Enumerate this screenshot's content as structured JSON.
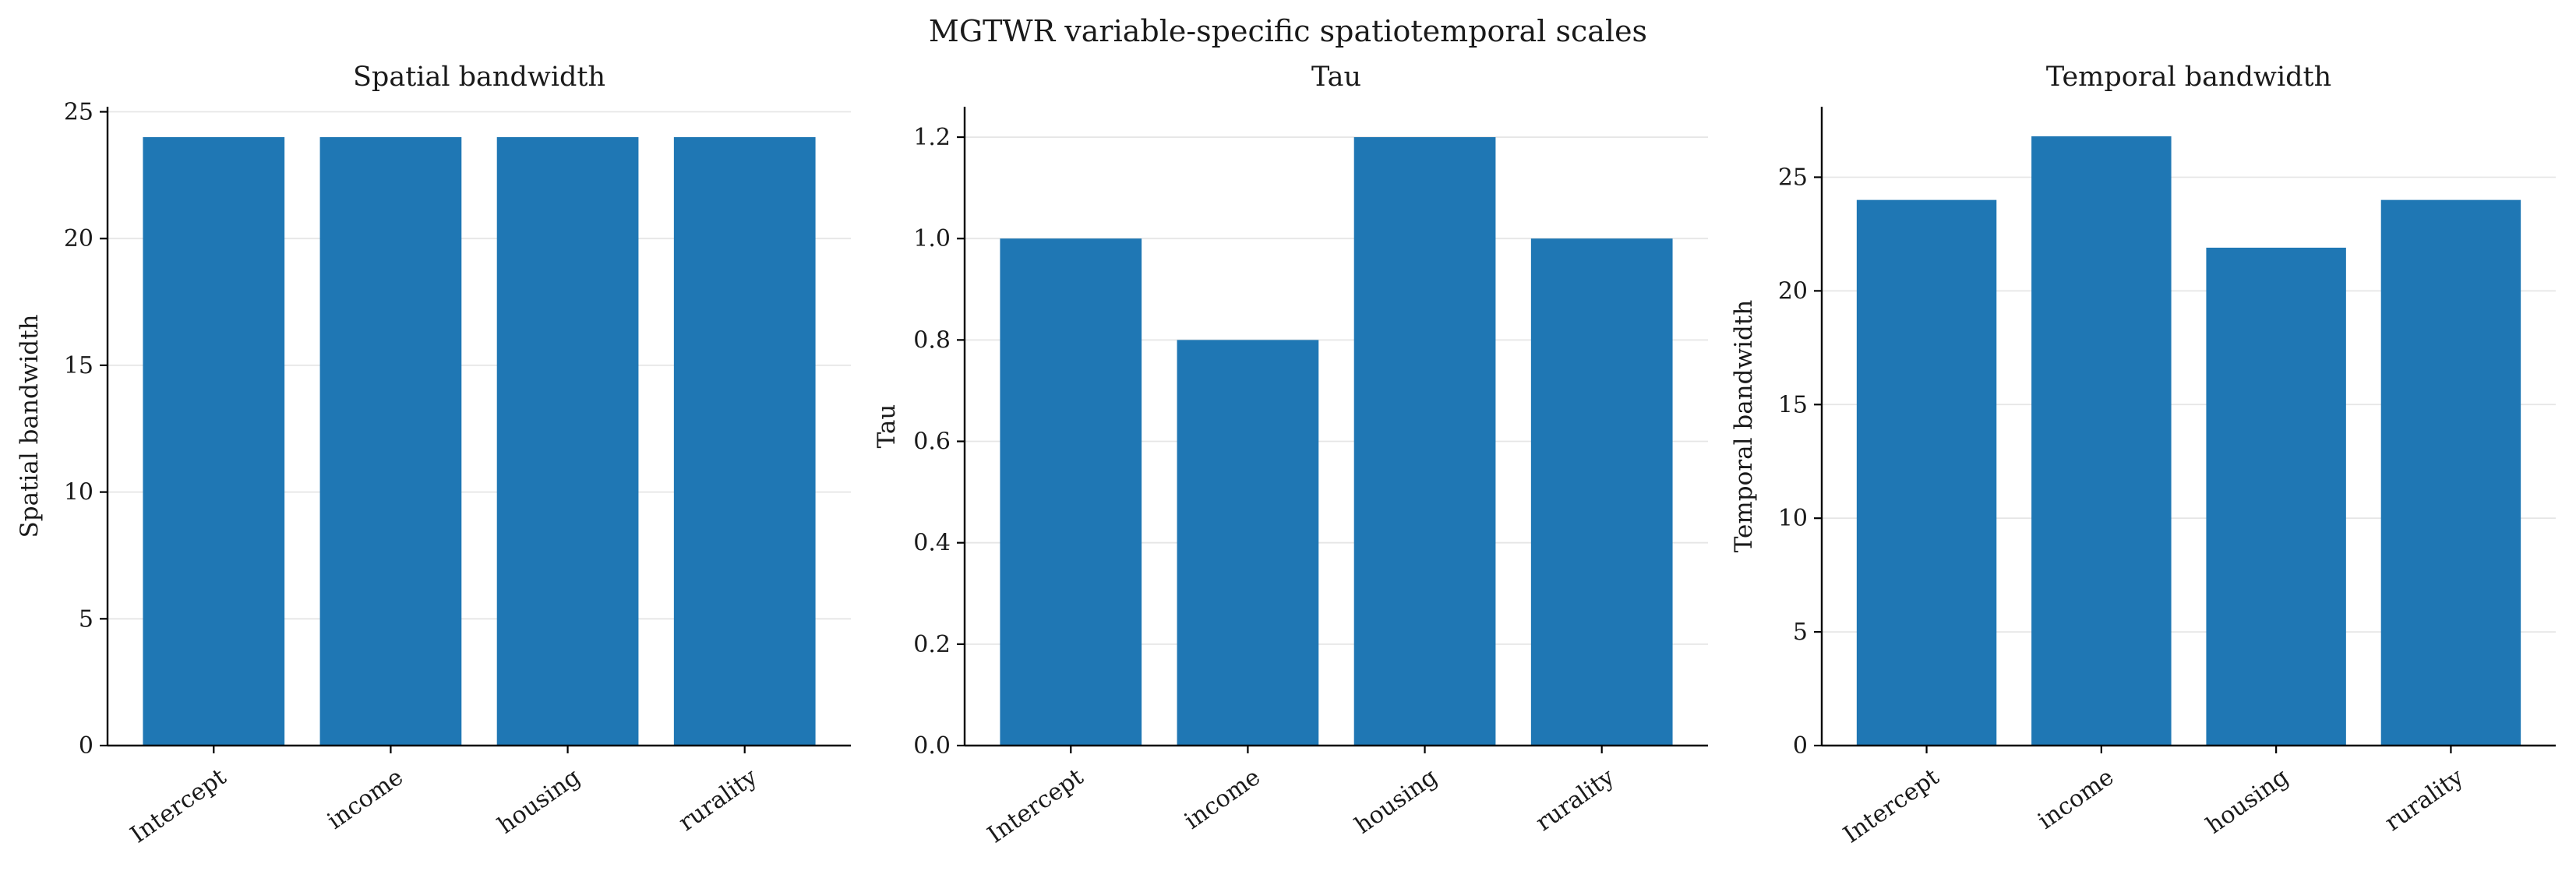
{
  "figure": {
    "title": "MGTWR variable-specific spatiotemporal scales",
    "bar_color": "#1f77b4",
    "grid": true
  },
  "chart_data": [
    {
      "type": "bar",
      "title": "Spatial bandwidth",
      "xlabel": "",
      "ylabel": "Spatial bandwidth",
      "categories": [
        "Intercept",
        "income",
        "housing",
        "rurality"
      ],
      "values": [
        24,
        24,
        24,
        24
      ],
      "ylim": [
        0,
        25.2
      ],
      "yticks": [
        0,
        5,
        10,
        15,
        20,
        25
      ],
      "ytick_labels": [
        "0",
        "5",
        "10",
        "15",
        "20",
        "25"
      ]
    },
    {
      "type": "bar",
      "title": "Tau",
      "xlabel": "",
      "ylabel": "Tau",
      "categories": [
        "Intercept",
        "income",
        "housing",
        "rurality"
      ],
      "values": [
        1.0,
        0.8,
        1.2,
        1.0
      ],
      "ylim": [
        0,
        1.26
      ],
      "yticks": [
        0,
        0.2,
        0.4,
        0.6,
        0.8,
        1.0,
        1.2
      ],
      "ytick_labels": [
        "0.0",
        "0.2",
        "0.4",
        "0.6",
        "0.8",
        "1.0",
        "1.2"
      ]
    },
    {
      "type": "bar",
      "title": "Temporal bandwidth",
      "xlabel": "",
      "ylabel": "Temporal bandwidth",
      "categories": [
        "Intercept",
        "income",
        "housing",
        "rurality"
      ],
      "values": [
        24,
        26.8,
        21.9,
        24
      ],
      "ylim": [
        0,
        28.1
      ],
      "yticks": [
        0,
        5,
        10,
        15,
        20,
        25
      ],
      "ytick_labels": [
        "0",
        "5",
        "10",
        "15",
        "20",
        "25"
      ]
    }
  ]
}
